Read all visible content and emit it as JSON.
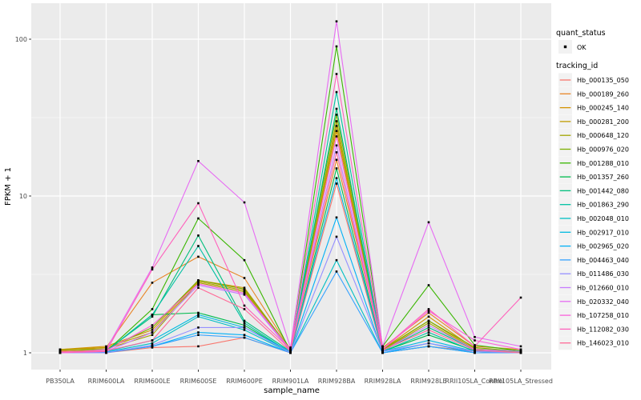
{
  "figure": {
    "background": "#FFFFFF",
    "panel_background": "#EBEBEB",
    "grid_color": "#FFFFFF",
    "tick_color": "#333333",
    "tick_label_color": "#4D4D4D",
    "point_color": "#000000",
    "legend_key_background": "#F2F2F2"
  },
  "chart_data": {
    "type": "line",
    "xlabel": "sample_name",
    "ylabel": "FPKM + 1",
    "y_scale": "log10",
    "ylim_log": [
      0.89,
      165
    ],
    "grid": "major-and-minor",
    "legend_position": "right",
    "y_ticks": [
      {
        "value": 1,
        "label": "1"
      },
      {
        "value": 10,
        "label": "10"
      },
      {
        "value": 100,
        "label": "100"
      }
    ],
    "y_minor_gridlines": [
      3.162,
      31.62
    ],
    "categories": [
      "PB350LA",
      "RRIM600LA",
      "RRIM600LE",
      "RRIM600SE",
      "RRIM600PE",
      "RRIM901LA",
      "RRIM928BA",
      "RRIM928LA",
      "RRIM928LE",
      "RRII105LA_Control",
      "RRII105LA_Stressed"
    ],
    "legend": {
      "quant_status_title": "quant_status",
      "ok_label": "OK",
      "tracking_id_title": "tracking_id"
    },
    "series": [
      {
        "name": "Hb_000135_050",
        "color": "#F8766D",
        "values": [
          1.02,
          1.0,
          1.08,
          1.1,
          1.25,
          1.0,
          12.0,
          1.0,
          1.1,
          1.02,
          1.0
        ]
      },
      {
        "name": "Hb_000189_260",
        "color": "#E88526",
        "values": [
          1.03,
          1.08,
          2.8,
          4.1,
          3.0,
          1.05,
          17.0,
          1.08,
          1.8,
          1.1,
          1.05
        ]
      },
      {
        "name": "Hb_000245_140",
        "color": "#D39200",
        "values": [
          1.05,
          1.1,
          1.4,
          2.9,
          2.6,
          1.04,
          26.0,
          1.05,
          1.7,
          1.06,
          1.02
        ]
      },
      {
        "name": "Hb_000281_200",
        "color": "#BF9C00",
        "values": [
          1.05,
          1.08,
          1.35,
          2.85,
          2.5,
          1.03,
          28.0,
          1.04,
          1.6,
          1.05,
          1.02
        ]
      },
      {
        "name": "Hb_000648_120",
        "color": "#A3A500",
        "values": [
          1.04,
          1.06,
          1.3,
          2.8,
          2.45,
          1.02,
          30.0,
          1.03,
          1.55,
          1.04,
          1.01
        ]
      },
      {
        "name": "Hb_000976_020",
        "color": "#7CAE00",
        "values": [
          1.02,
          1.05,
          1.45,
          2.9,
          2.55,
          1.05,
          33.0,
          1.05,
          1.6,
          1.08,
          1.02
        ]
      },
      {
        "name": "Hb_001288_010",
        "color": "#39B600",
        "values": [
          1.0,
          1.02,
          1.9,
          7.2,
          3.9,
          1.02,
          90.0,
          1.1,
          2.7,
          1.12,
          1.03
        ]
      },
      {
        "name": "Hb_001357_260",
        "color": "#00BB4E",
        "values": [
          1.0,
          1.02,
          1.75,
          1.8,
          1.5,
          1.0,
          15.0,
          1.02,
          1.3,
          1.03,
          1.0
        ]
      },
      {
        "name": "Hb_001442_080",
        "color": "#00BF7D",
        "values": [
          1.0,
          1.03,
          1.7,
          5.6,
          1.6,
          1.02,
          36.0,
          1.03,
          1.45,
          1.05,
          1.02
        ]
      },
      {
        "name": "Hb_001863_290",
        "color": "#00C1A3",
        "values": [
          1.0,
          1.02,
          1.75,
          4.8,
          1.55,
          1.0,
          46.0,
          1.02,
          1.35,
          1.02,
          1.0
        ]
      },
      {
        "name": "Hb_002048_010",
        "color": "#00BFC4",
        "values": [
          1.0,
          1.01,
          1.15,
          1.7,
          1.4,
          1.0,
          3.9,
          1.0,
          1.1,
          1.0,
          1.0
        ]
      },
      {
        "name": "Hb_002917_010",
        "color": "#00BAE0",
        "values": [
          1.0,
          1.02,
          1.2,
          1.75,
          1.45,
          1.02,
          13.0,
          1.02,
          1.2,
          1.02,
          1.0
        ]
      },
      {
        "name": "Hb_002965_020",
        "color": "#00B0F6",
        "values": [
          1.0,
          1.0,
          1.1,
          1.35,
          1.3,
          1.0,
          7.3,
          1.0,
          1.15,
          1.0,
          1.0
        ]
      },
      {
        "name": "Hb_004463_040",
        "color": "#35A2FF",
        "values": [
          1.0,
          1.01,
          1.1,
          1.3,
          1.25,
          1.0,
          3.3,
          1.0,
          1.1,
          1.0,
          1.0
        ]
      },
      {
        "name": "Hb_011486_030",
        "color": "#9590FF",
        "values": [
          1.0,
          1.0,
          1.12,
          1.45,
          1.45,
          1.0,
          5.5,
          1.02,
          1.15,
          1.02,
          1.0
        ]
      },
      {
        "name": "Hb_012660_010",
        "color": "#C77CFF",
        "values": [
          1.0,
          1.02,
          1.35,
          2.7,
          2.35,
          1.03,
          21.0,
          1.03,
          1.5,
          1.05,
          1.02
        ]
      },
      {
        "name": "Hb_020332_040",
        "color": "#E76BF3",
        "values": [
          1.0,
          1.05,
          3.5,
          16.7,
          9.1,
          1.08,
          130.0,
          1.1,
          6.8,
          1.26,
          1.1
        ]
      },
      {
        "name": "Hb_107258_010",
        "color": "#FA62DB",
        "values": [
          1.0,
          1.03,
          1.5,
          2.75,
          2.4,
          1.05,
          24.0,
          1.05,
          1.85,
          1.2,
          1.05
        ]
      },
      {
        "name": "Hb_112082_030",
        "color": "#FF62BC",
        "values": [
          1.0,
          1.02,
          3.4,
          9.0,
          2.0,
          1.05,
          60.0,
          1.06,
          1.9,
          1.1,
          2.25
        ]
      },
      {
        "name": "Hb_146023_010",
        "color": "#FF6A98",
        "values": [
          1.02,
          1.03,
          1.2,
          2.6,
          1.9,
          1.02,
          19.0,
          1.04,
          1.4,
          1.04,
          1.0
        ]
      }
    ]
  }
}
